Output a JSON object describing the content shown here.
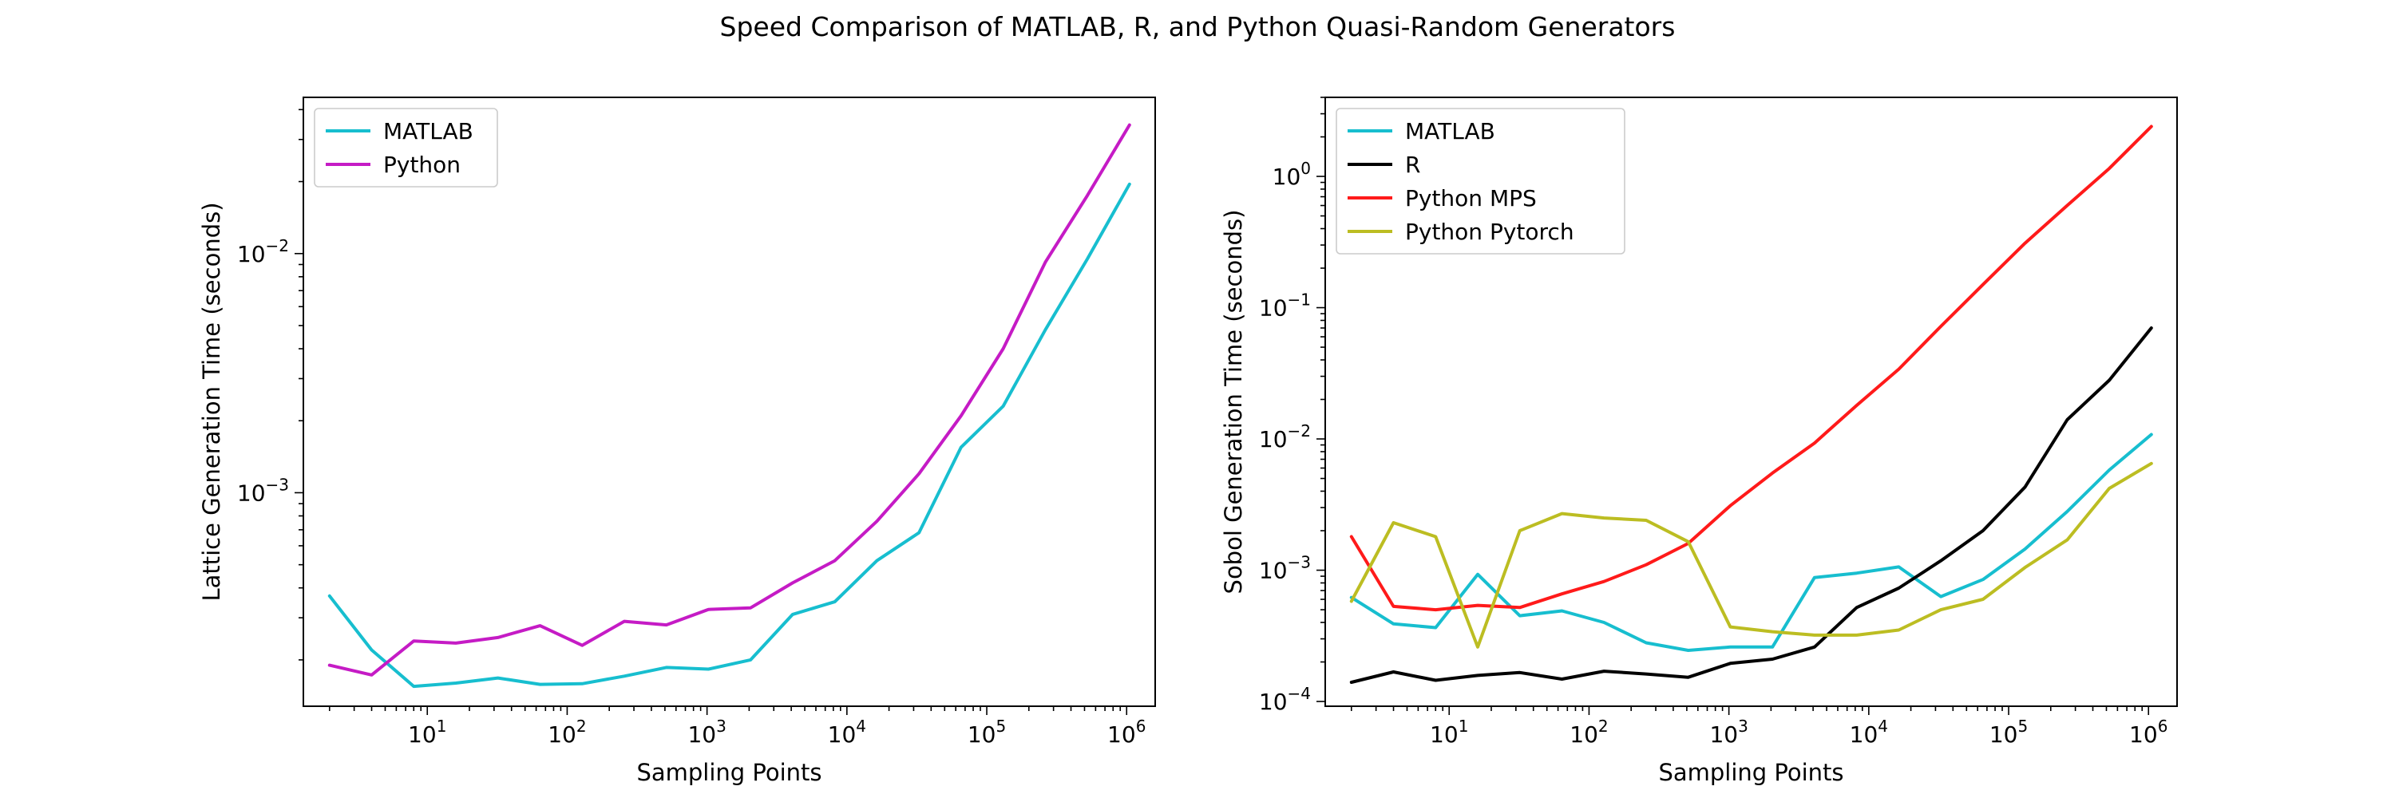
{
  "figure": {
    "title": "Speed Comparison of MATLAB, R, and Python Quasi-Random Generators"
  },
  "chart_data": [
    {
      "type": "line",
      "xscale": "log",
      "yscale": "log",
      "xlabel": "Sampling Points",
      "ylabel": "Lattice Generation Time (seconds)",
      "xlim": [
        1.3,
        1600000
      ],
      "ylim": [
        0.000128,
        0.045
      ],
      "xticks": [
        {
          "base": "10",
          "exp": "1",
          "value": 10
        },
        {
          "base": "10",
          "exp": "2",
          "value": 100
        },
        {
          "base": "10",
          "exp": "3",
          "value": 1000
        },
        {
          "base": "10",
          "exp": "4",
          "value": 10000
        },
        {
          "base": "10",
          "exp": "5",
          "value": 100000
        },
        {
          "base": "10",
          "exp": "6",
          "value": 1000000
        }
      ],
      "yticks": [
        {
          "base": "10",
          "exp": "−3",
          "value": 0.001
        },
        {
          "base": "10",
          "exp": "−2",
          "value": 0.01
        }
      ],
      "legend": "upper left",
      "grid": false,
      "x": [
        2,
        4,
        8,
        16,
        32,
        64,
        128,
        256,
        512,
        1024,
        2048,
        4096,
        8192,
        16384,
        32768,
        65536,
        131072,
        262144,
        524288,
        1048576
      ],
      "series": [
        {
          "name": "MATLAB",
          "color": "#17BECF",
          "values": [
            0.00037,
            0.00022,
            0.000155,
            0.00016,
            0.000168,
            0.000158,
            0.000159,
            0.000171,
            0.000186,
            0.000183,
            0.0002,
            0.00031,
            0.00035,
            0.00052,
            0.00068,
            0.00155,
            0.0023,
            0.0048,
            0.0095,
            0.0195
          ]
        },
        {
          "name": "Python",
          "color": "#C51BC5",
          "values": [
            0.00019,
            0.000173,
            0.00024,
            0.000235,
            0.000248,
            0.000278,
            0.00023,
            0.00029,
            0.00028,
            0.000325,
            0.00033,
            0.00042,
            0.00052,
            0.00076,
            0.0012,
            0.0021,
            0.004,
            0.0092,
            0.0175,
            0.0345
          ]
        }
      ]
    },
    {
      "type": "line",
      "xscale": "log",
      "yscale": "log",
      "xlabel": "Sampling Points",
      "ylabel": "Sobol Generation Time (seconds)",
      "xlim": [
        1.3,
        1600000
      ],
      "ylim": [
        9.2e-05,
        4.0
      ],
      "xticks": [
        {
          "base": "10",
          "exp": "1",
          "value": 10
        },
        {
          "base": "10",
          "exp": "2",
          "value": 100
        },
        {
          "base": "10",
          "exp": "3",
          "value": 1000
        },
        {
          "base": "10",
          "exp": "4",
          "value": 10000
        },
        {
          "base": "10",
          "exp": "5",
          "value": 100000
        },
        {
          "base": "10",
          "exp": "6",
          "value": 1000000
        }
      ],
      "yticks": [
        {
          "base": "10",
          "exp": "−4",
          "value": 0.0001
        },
        {
          "base": "10",
          "exp": "−3",
          "value": 0.001
        },
        {
          "base": "10",
          "exp": "−2",
          "value": 0.01
        },
        {
          "base": "10",
          "exp": "−1",
          "value": 0.1
        },
        {
          "base": "10",
          "exp": "0",
          "value": 1
        }
      ],
      "legend": "upper left",
      "grid": false,
      "x": [
        2,
        4,
        8,
        16,
        32,
        64,
        128,
        256,
        512,
        1024,
        2048,
        4096,
        8192,
        16384,
        32768,
        65536,
        131072,
        262144,
        524288,
        1048576
      ],
      "series": [
        {
          "name": "MATLAB",
          "color": "#17BECF",
          "values": [
            0.00062,
            0.00039,
            0.000365,
            0.00093,
            0.00045,
            0.00049,
            0.0004,
            0.00028,
            0.000245,
            0.00026,
            0.00026,
            0.00088,
            0.00095,
            0.00106,
            0.00063,
            0.00085,
            0.00145,
            0.0028,
            0.0058,
            0.0108
          ]
        },
        {
          "name": "R",
          "color": "#000000",
          "values": [
            0.00014,
            0.000168,
            0.000145,
            0.000158,
            0.000166,
            0.000148,
            0.00017,
            0.000162,
            0.000153,
            0.000195,
            0.00021,
            0.00026,
            0.00052,
            0.00073,
            0.00118,
            0.002,
            0.0043,
            0.014,
            0.028,
            0.07
          ]
        },
        {
          "name": "Python MPS",
          "color": "#FF1A1A",
          "values": [
            0.0018,
            0.00053,
            0.0005,
            0.00054,
            0.00052,
            0.00066,
            0.00082,
            0.0011,
            0.0016,
            0.0031,
            0.0055,
            0.0093,
            0.018,
            0.034,
            0.072,
            0.15,
            0.31,
            0.6,
            1.15,
            2.4
          ]
        },
        {
          "name": "Python Pytorch",
          "color": "#BCBD22",
          "values": [
            0.00058,
            0.0023,
            0.0018,
            0.00026,
            0.002,
            0.0027,
            0.0025,
            0.0024,
            0.00165,
            0.00037,
            0.00034,
            0.00032,
            0.00032,
            0.00035,
            0.0005,
            0.0006,
            0.00105,
            0.0017,
            0.0042,
            0.0065
          ]
        }
      ]
    }
  ]
}
